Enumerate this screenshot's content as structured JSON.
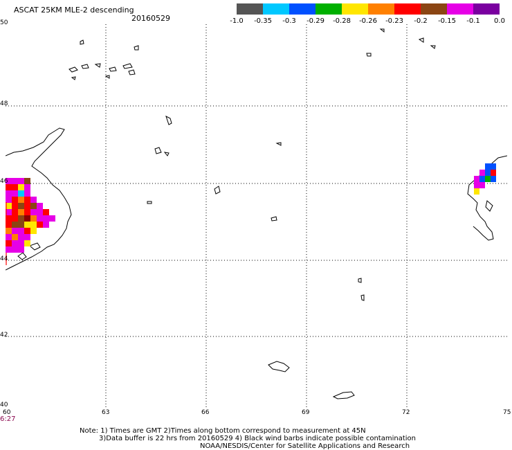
{
  "title": "ASCAT 25KM MLE-2 descending",
  "date": "20160529",
  "colorbar": {
    "colors": [
      "#555555",
      "#00c8ff",
      "#0050ff",
      "#00b000",
      "#ffe600",
      "#ff8000",
      "#ff0000",
      "#8b4513",
      "#e600e6",
      "#7a00a0"
    ],
    "labels": [
      "-1.0",
      "-0.35",
      "-0.3",
      "-0.29",
      "-0.28",
      "-0.26",
      "-0.23",
      "-0.2",
      "-0.15",
      "-0.1",
      "0.0"
    ]
  },
  "axes": {
    "lat_labels": [
      "50",
      "48",
      "46",
      "44",
      "42",
      "40"
    ],
    "lon_labels": [
      "60",
      "63",
      "66",
      "69",
      "72",
      "75"
    ],
    "grid": "dotted"
  },
  "time_label": "6:27",
  "notes": {
    "line1": "Note: 1) Times are GMT 2)Times along bottom correspond to measurement at 45N",
    "line2": "3)Data buffer is 22 hrs from 20160529 4) Black wind barbs indicate possible contamination",
    "line3": "NOAA/NESDIS/Center for Satellite Applications and Research"
  },
  "map_data": {
    "extent": {
      "lon": [
        60,
        75
      ],
      "lat": [
        40,
        50
      ]
    },
    "left_swath_colors": [
      [
        "#e600e6",
        "#e600e6",
        "#e600e6",
        "#8b4513"
      ],
      [
        "#ff0000",
        "#ff0000",
        "#ffe600",
        "#e600e6"
      ],
      [
        "#e600e6",
        "#e600e6",
        "#00c8ff",
        "#e600e6"
      ],
      [
        "#e600e6",
        "#ff0000",
        "#ff8000",
        "#ff0000",
        "#e600e6"
      ],
      [
        "#ffe600",
        "#ff0000",
        "#8b4513",
        "#ff0000",
        "#8b4513",
        "#e600e6"
      ],
      [
        "#e600e6",
        "#ff0000",
        "#ff8000",
        "#ff0000",
        "#e600e6",
        "#e600e6",
        "#ff0000"
      ],
      [
        "#ff0000",
        "#ff0000",
        "#8b4513",
        "#8b0000",
        "#ff8000",
        "#e600e6",
        "#e600e6",
        "#e600e6"
      ],
      [
        "#ff0000",
        "#8b4513",
        "#8b4513",
        "#ffe600",
        "#ffe600",
        "#ff0000",
        "#e600e6"
      ],
      [
        "#ff8000",
        "#e600e6",
        "#e600e6",
        "#ff0000",
        "#ffe600"
      ],
      [
        "#e600e6",
        "#ff8000",
        "#e600e6",
        "#e600e6"
      ],
      [
        "#ff0000",
        "#e600e6",
        "#e600e6",
        "#ffe600"
      ],
      [
        "#e600e6",
        "#e600e6",
        "#e600e6"
      ]
    ],
    "right_swath_colors": [
      [
        "",
        "",
        "#0050ff",
        "#0050ff"
      ],
      [
        "",
        "#e600e6",
        "#0050ff",
        "#ff0000"
      ],
      [
        "#e600e6",
        "#0050ff",
        "#00b000",
        "#0050ff"
      ],
      [
        "#e600e6",
        "#e600e6",
        "",
        ""
      ],
      [
        "#ffe600",
        "",
        "",
        ""
      ]
    ]
  }
}
